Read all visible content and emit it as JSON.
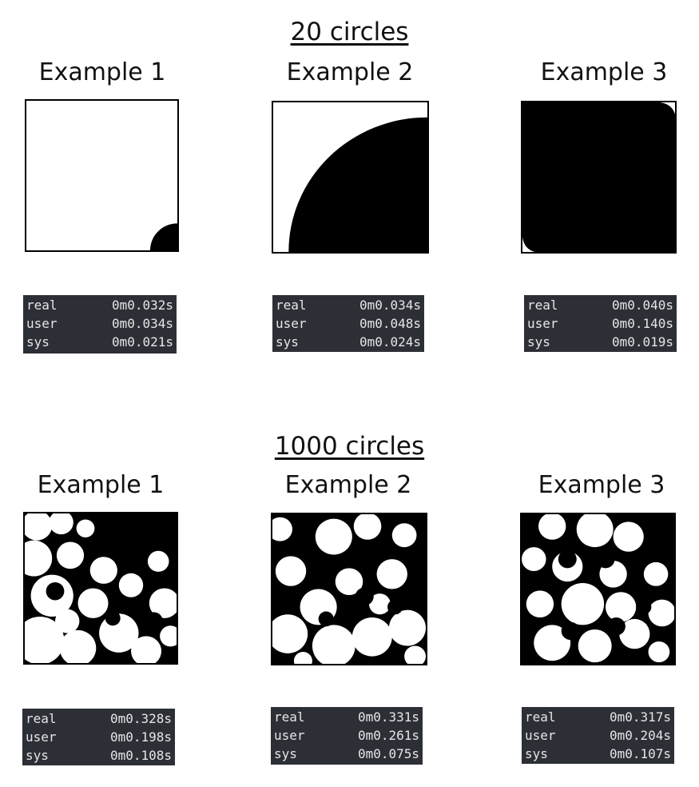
{
  "sections": [
    {
      "heading": "20 circles",
      "examples": [
        {
          "title": "Example 1",
          "timing": [
            {
              "label": "real",
              "value": "0m0.032s"
            },
            {
              "label": "user",
              "value": "0m0.034s"
            },
            {
              "label": "sys",
              "value": "0m0.021s"
            }
          ]
        },
        {
          "title": "Example 2",
          "timing": [
            {
              "label": "real",
              "value": "0m0.034s"
            },
            {
              "label": "user",
              "value": "0m0.048s"
            },
            {
              "label": "sys",
              "value": "0m0.024s"
            }
          ]
        },
        {
          "title": "Example 3",
          "timing": [
            {
              "label": "real",
              "value": "0m0.040s"
            },
            {
              "label": "user",
              "value": "0m0.140s"
            },
            {
              "label": "sys",
              "value": "0m0.019s"
            }
          ]
        }
      ]
    },
    {
      "heading": "1000 circles",
      "examples": [
        {
          "title": "Example 1",
          "timing": [
            {
              "label": "real",
              "value": "0m0.328s"
            },
            {
              "label": "user",
              "value": "0m0.198s"
            },
            {
              "label": "sys",
              "value": "0m0.108s"
            }
          ]
        },
        {
          "title": "Example 2",
          "timing": [
            {
              "label": "real",
              "value": "0m0.331s"
            },
            {
              "label": "user",
              "value": "0m0.261s"
            },
            {
              "label": "sys",
              "value": "0m0.075s"
            }
          ]
        },
        {
          "title": "Example 3",
          "timing": [
            {
              "label": "real",
              "value": "0m0.317s"
            },
            {
              "label": "user",
              "value": "0m0.204s"
            },
            {
              "label": "sys",
              "value": "0m0.107s"
            }
          ]
        }
      ]
    }
  ]
}
